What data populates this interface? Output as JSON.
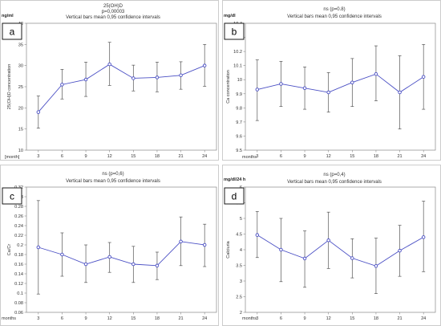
{
  "chart_data": [
    {
      "panel": "a",
      "type": "line",
      "title": "25(OH)D",
      "subtitle": "p=0,00003",
      "subtitle2": "Vertical bars mean 0,95 confidence intervals",
      "unit": "ng/ml",
      "ylabel": "25(OH)D concentration",
      "xlabel": "[month]",
      "x": [
        3,
        6,
        9,
        12,
        15,
        18,
        21,
        24
      ],
      "xticks": [
        "3",
        "6",
        "9",
        "12",
        "15",
        "18",
        "21",
        "24"
      ],
      "ylim": [
        10,
        40
      ],
      "yticks": [
        "10",
        "15",
        "20",
        "25",
        "30",
        "35",
        "40"
      ],
      "values": [
        19,
        25.5,
        26.7,
        30.3,
        27,
        27.2,
        27.7,
        30
      ],
      "lower": [
        15.2,
        22.1,
        22.7,
        25.3,
        24,
        23.8,
        24.4,
        25.1
      ],
      "upper": [
        22.8,
        29.1,
        30.8,
        35.5,
        30.1,
        30.8,
        30.9,
        35
      ]
    },
    {
      "panel": "b",
      "type": "line",
      "title": "ns  (p=0.8)",
      "subtitle": "Vertical bars mean 0,95 confidence intervals",
      "unit": "mg/dl",
      "ylabel": "Ca concentration",
      "xlabel": "months",
      "x": [
        3,
        6,
        9,
        12,
        15,
        18,
        21,
        24
      ],
      "xticks": [
        "3",
        "6",
        "9",
        "12",
        "15",
        "18",
        "21",
        "24"
      ],
      "ylim": [
        9.5,
        10.4
      ],
      "yticks": [
        "9.5",
        "9.6",
        "9.7",
        "9.8",
        "9.9",
        "10",
        "10.1",
        "10.2",
        "10.3",
        "10.4"
      ],
      "values": [
        9.93,
        9.97,
        9.94,
        9.91,
        9.98,
        10.04,
        9.91,
        10.02
      ],
      "lower": [
        9.71,
        9.81,
        9.79,
        9.77,
        9.81,
        9.85,
        9.65,
        9.79
      ],
      "upper": [
        10.14,
        10.13,
        10.09,
        10.05,
        10.15,
        10.24,
        10.17,
        10.25
      ]
    },
    {
      "panel": "c",
      "type": "line",
      "title": "ns  (p=0,6)",
      "subtitle": "Vertical bars mean 0,95 confidence intervals",
      "unit": "",
      "ylabel": "Ca/Cr",
      "xlabel": "months",
      "x": [
        3,
        6,
        9,
        12,
        15,
        18,
        21,
        24
      ],
      "xticks": [
        "3",
        "6",
        "9",
        "12",
        "15",
        "18",
        "21",
        "24"
      ],
      "ylim": [
        0.06,
        0.32
      ],
      "yticks": [
        "0.06",
        "0.08",
        "0.1",
        "0.12",
        "0.14",
        "0.16",
        "0.18",
        "0.2",
        "0.22",
        "0.24",
        "0.26",
        "0.28",
        "0.3",
        "0.32"
      ],
      "values": [
        0.195,
        0.18,
        0.16,
        0.175,
        0.16,
        0.157,
        0.207,
        0.2
      ],
      "lower": [
        0.098,
        0.135,
        0.122,
        0.143,
        0.122,
        0.128,
        0.157,
        0.155
      ],
      "upper": [
        0.292,
        0.225,
        0.2,
        0.205,
        0.197,
        0.185,
        0.258,
        0.243
      ]
    },
    {
      "panel": "d",
      "type": "line",
      "title": "ns  (p=0,4)",
      "subtitle": "Vertical bars mean 0,95 confidence intervals",
      "unit": "mg/dl/24 h",
      "ylabel": "Calciuria",
      "xlabel": "months",
      "x": [
        3,
        6,
        9,
        12,
        15,
        18,
        21,
        24
      ],
      "xticks": [
        "3",
        "6",
        "9",
        "12",
        "15",
        "18",
        "21",
        "24"
      ],
      "ylim": [
        2,
        6
      ],
      "yticks": [
        "2",
        "2.5",
        "3",
        "3.5",
        "4",
        "4.5",
        "5",
        "5.5",
        "6"
      ],
      "values": [
        4.47,
        4,
        3.72,
        4.3,
        3.73,
        3.48,
        3.97,
        4.4
      ],
      "lower": [
        3.75,
        2.98,
        2.8,
        3.4,
        3.1,
        2.6,
        3.15,
        3.3
      ],
      "upper": [
        5.22,
        5,
        4.6,
        5.2,
        4.35,
        4.37,
        4.78,
        5.55
      ]
    }
  ],
  "colors": {
    "series": "#4a4fc4",
    "errorbar": "#555555",
    "axis": "#888888",
    "grid": "#dddddd",
    "frame": "#c0c0c0"
  }
}
